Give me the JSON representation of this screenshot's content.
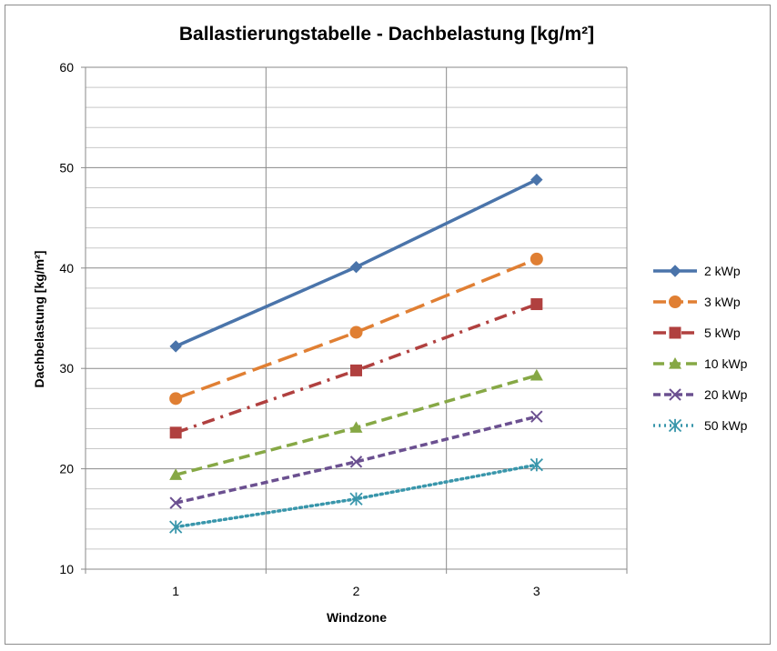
{
  "chart_data": {
    "type": "line",
    "title": "Ballastierungstabelle - Dachbelastung [kg/m²]",
    "xlabel": "Windzone",
    "ylabel": "Dachbelastung [kg/m²]",
    "categories": [
      "1",
      "2",
      "3"
    ],
    "ylim": [
      10,
      60
    ],
    "yticks": [
      10,
      20,
      30,
      40,
      50,
      60
    ],
    "y_minor_step": 2,
    "grid": true,
    "legend_position": "right",
    "series": [
      {
        "name": "2 kWp",
        "values": [
          32.2,
          40.1,
          48.8
        ],
        "color": "#4a74aa",
        "dash": "solid",
        "marker": "diamond"
      },
      {
        "name": "3 kWp",
        "values": [
          27.0,
          33.6,
          40.9
        ],
        "color": "#e07f33",
        "dash": "longdash",
        "marker": "circle"
      },
      {
        "name": "5 kWp",
        "values": [
          23.6,
          29.8,
          36.4
        ],
        "color": "#b0403f",
        "dash": "dashdot",
        "marker": "square"
      },
      {
        "name": "10 kWp",
        "values": [
          19.4,
          24.1,
          29.3
        ],
        "color": "#86a845",
        "dash": "dash",
        "marker": "triangle"
      },
      {
        "name": "20 kWp",
        "values": [
          16.6,
          20.7,
          25.2
        ],
        "color": "#6b5090",
        "dash": "shortdash",
        "marker": "x"
      },
      {
        "name": "50 kWp",
        "values": [
          14.2,
          17.0,
          20.4
        ],
        "color": "#3996ab",
        "dash": "dot",
        "marker": "star"
      }
    ]
  }
}
